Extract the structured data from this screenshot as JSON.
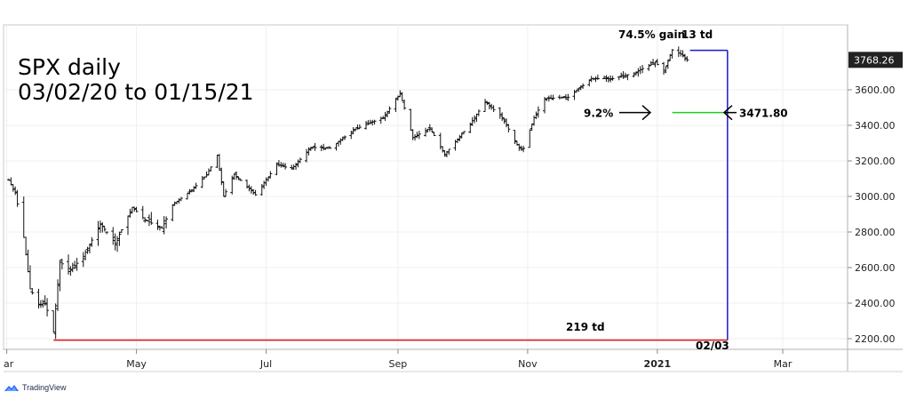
{
  "chart_data": {
    "type": "ohlc",
    "title_lines": [
      "SPX daily",
      "03/02/20 to 01/15/21"
    ],
    "x_tick_labels": [
      "ar",
      "May",
      "Jul",
      "Sep",
      "Nov",
      "2021",
      "Mar"
    ],
    "y_tick_labels": [
      "2200.00",
      "2400.00",
      "2600.00",
      "2800.00",
      "3000.00",
      "3200.00",
      "3400.00",
      "3600.00"
    ],
    "ylim": [
      2130,
      3910
    ],
    "last_price_label": "3768.26",
    "last_price": 3768.26,
    "grid": true,
    "series_points": [
      [
        "2020-03-02",
        3090
      ],
      [
        "2020-03-05",
        3020
      ],
      [
        "2020-03-09",
        2770
      ],
      [
        "2020-03-12",
        2480
      ],
      [
        "2020-03-16",
        2390
      ],
      [
        "2020-03-19",
        2400
      ],
      [
        "2020-03-23",
        2237
      ],
      [
        "2020-03-26",
        2630
      ],
      [
        "2020-03-31",
        2585
      ],
      [
        "2020-04-06",
        2663
      ],
      [
        "2020-04-14",
        2846
      ],
      [
        "2020-04-21",
        2737
      ],
      [
        "2020-04-29",
        2939
      ],
      [
        "2020-05-05",
        2868
      ],
      [
        "2020-05-13",
        2820
      ],
      [
        "2020-05-18",
        2953
      ],
      [
        "2020-05-27",
        3036
      ],
      [
        "2020-06-03",
        3122
      ],
      [
        "2020-06-08",
        3232
      ],
      [
        "2020-06-11",
        3002
      ],
      [
        "2020-06-16",
        3124
      ],
      [
        "2020-06-26",
        3009
      ],
      [
        "2020-07-06",
        3179
      ],
      [
        "2020-07-13",
        3155
      ],
      [
        "2020-07-22",
        3276
      ],
      [
        "2020-07-31",
        3271
      ],
      [
        "2020-08-12",
        3380
      ],
      [
        "2020-08-25",
        3443
      ],
      [
        "2020-09-02",
        3580
      ],
      [
        "2020-09-08",
        3331
      ],
      [
        "2020-09-16",
        3385
      ],
      [
        "2020-09-23",
        3237
      ],
      [
        "2020-10-05",
        3408
      ],
      [
        "2020-10-12",
        3534
      ],
      [
        "2020-10-20",
        3443
      ],
      [
        "2020-10-28",
        3271
      ],
      [
        "2020-10-30",
        3270
      ],
      [
        "2020-11-04",
        3443
      ],
      [
        "2020-11-09",
        3550
      ],
      [
        "2020-11-20",
        3558
      ],
      [
        "2020-12-01",
        3662
      ],
      [
        "2020-12-11",
        3663
      ],
      [
        "2020-12-21",
        3694
      ],
      [
        "2020-12-31",
        3756
      ],
      [
        "2021-01-04",
        3700
      ],
      [
        "2021-01-08",
        3824
      ],
      [
        "2021-01-12",
        3801
      ],
      [
        "2021-01-15",
        3768
      ]
    ],
    "annotations": {
      "gain_label": "74.5% gain",
      "td_13_label": "13 td",
      "td_219_label": "219 td",
      "date_label": "02/03",
      "pct_label": "9.2%",
      "level_label": "3471.80",
      "level_value": 3471.8,
      "low_value": 2191.86,
      "high_value": 3824,
      "end_date": "2021-02-03",
      "colors": {
        "baseline": "#e01010",
        "vertical": "#1a1acc",
        "level": "#22cc22"
      }
    }
  },
  "branding": {
    "text": "TradingView",
    "logo": "tradingview-logo"
  }
}
